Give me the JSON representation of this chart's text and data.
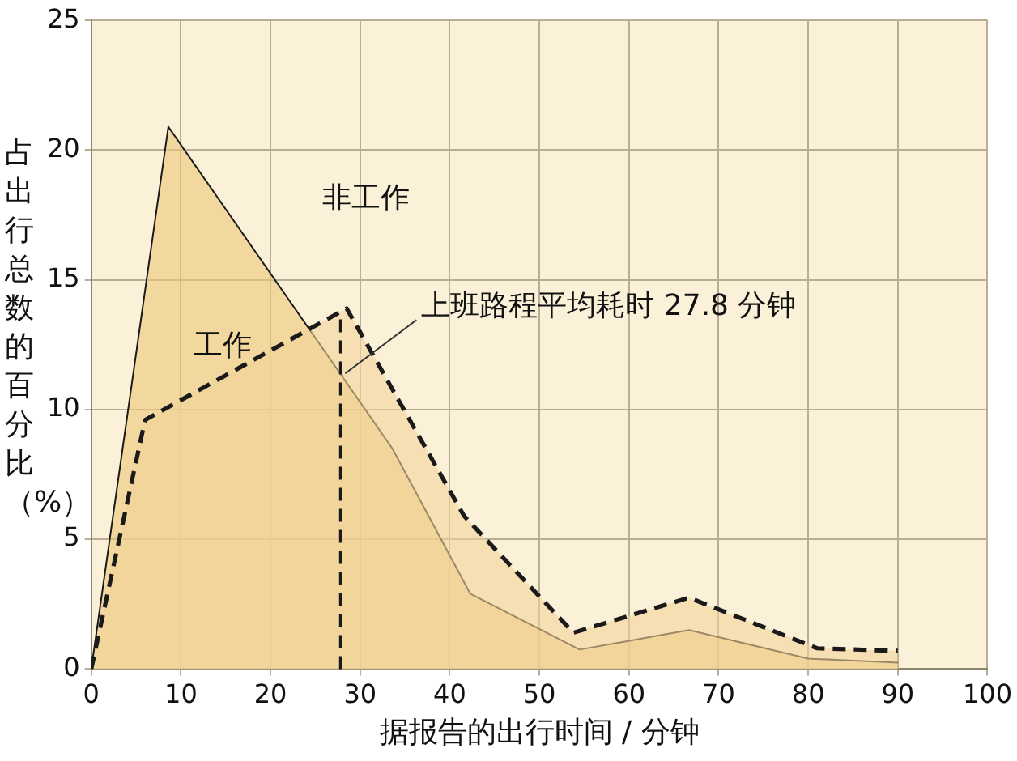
{
  "chart_data": {
    "type": "area",
    "xlabel": "据报告的出行时间 / 分钟",
    "ylabel": "占出行总数的百分比（%）",
    "series": [
      {
        "name": "非工作",
        "color": "#ecc878",
        "line_style": "solid",
        "x": [
          0,
          8.6,
          33.6,
          42.3,
          54.5,
          66.7,
          80,
          90
        ],
        "values": [
          0,
          20.9,
          8.5,
          2.9,
          0.75,
          1.5,
          0.4,
          0.25
        ]
      },
      {
        "name": "工作",
        "color": "#f2d49a",
        "line_style": "dashed",
        "x": [
          0,
          6,
          28.5,
          41.6,
          53.8,
          66.7,
          81,
          90
        ],
        "values": [
          0,
          9.6,
          13.9,
          5.9,
          1.4,
          2.75,
          0.8,
          0.7
        ]
      }
    ],
    "xlim": [
      0,
      100
    ],
    "xticks": [
      0,
      10,
      20,
      30,
      40,
      50,
      60,
      70,
      80,
      90,
      100
    ],
    "ylim": [
      0,
      25
    ],
    "yticks": [
      0,
      5,
      10,
      15,
      20,
      25
    ],
    "grid": true,
    "legend": false,
    "marker": "none",
    "ref_lines": [
      {
        "axis": "x",
        "value": 27.8,
        "label": "上班路程平均耗时 27.8 分钟",
        "line_style": "dashed"
      }
    ]
  }
}
